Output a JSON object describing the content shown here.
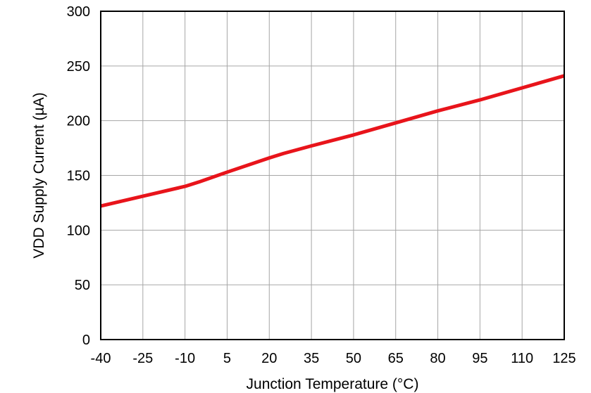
{
  "chart_data": {
    "type": "line",
    "xlabel": "Junction Temperature (°C)",
    "ylabel": "VDD Supply Current (µA)",
    "xlim": [
      -40,
      125
    ],
    "ylim": [
      0,
      300
    ],
    "x_ticks": [
      -40,
      -25,
      -10,
      5,
      20,
      35,
      50,
      65,
      80,
      95,
      110,
      125
    ],
    "y_ticks": [
      0,
      50,
      100,
      150,
      200,
      250,
      300
    ],
    "grid": true,
    "series": [
      {
        "color": "#e8141b",
        "x": [
          -40,
          -25,
          -10,
          -5,
          5,
          20,
          25,
          35,
          50,
          65,
          80,
          95,
          110,
          125
        ],
        "y": [
          122,
          131,
          140,
          144,
          153,
          166,
          170,
          177,
          187,
          198,
          209,
          219,
          230,
          241
        ]
      }
    ],
    "colors": {
      "grid": "#a6a6a6",
      "frame": "#000000",
      "text": "#000000"
    }
  }
}
